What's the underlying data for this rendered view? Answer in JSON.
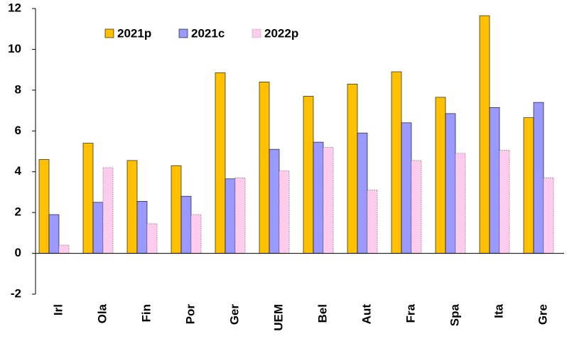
{
  "chart_data": {
    "type": "bar",
    "categories": [
      "Irl",
      "Ola",
      "Fin",
      "Por",
      "Ger",
      "UEM",
      "Bel",
      "Aut",
      "Fra",
      "Spa",
      "Ita",
      "Gre"
    ],
    "series": [
      {
        "name": "2021p",
        "color": "#ffc000",
        "values": [
          4.6,
          5.4,
          4.55,
          4.3,
          8.85,
          8.4,
          7.7,
          8.3,
          8.9,
          7.65,
          11.65,
          6.65
        ]
      },
      {
        "name": "2021c",
        "color": "#9999ff",
        "values": [
          1.9,
          2.5,
          2.55,
          2.8,
          3.65,
          5.1,
          5.45,
          5.9,
          6.4,
          6.85,
          7.15,
          7.4
        ]
      },
      {
        "name": "2022p",
        "color": "#ffccee",
        "values": [
          0.4,
          4.2,
          1.45,
          1.9,
          3.7,
          4.05,
          5.2,
          3.1,
          4.55,
          4.9,
          5.05,
          3.7
        ]
      }
    ],
    "ylim": [
      -2,
      12
    ],
    "yticks": [
      -2,
      0,
      2,
      4,
      6,
      8,
      10,
      12
    ],
    "grid": false
  }
}
